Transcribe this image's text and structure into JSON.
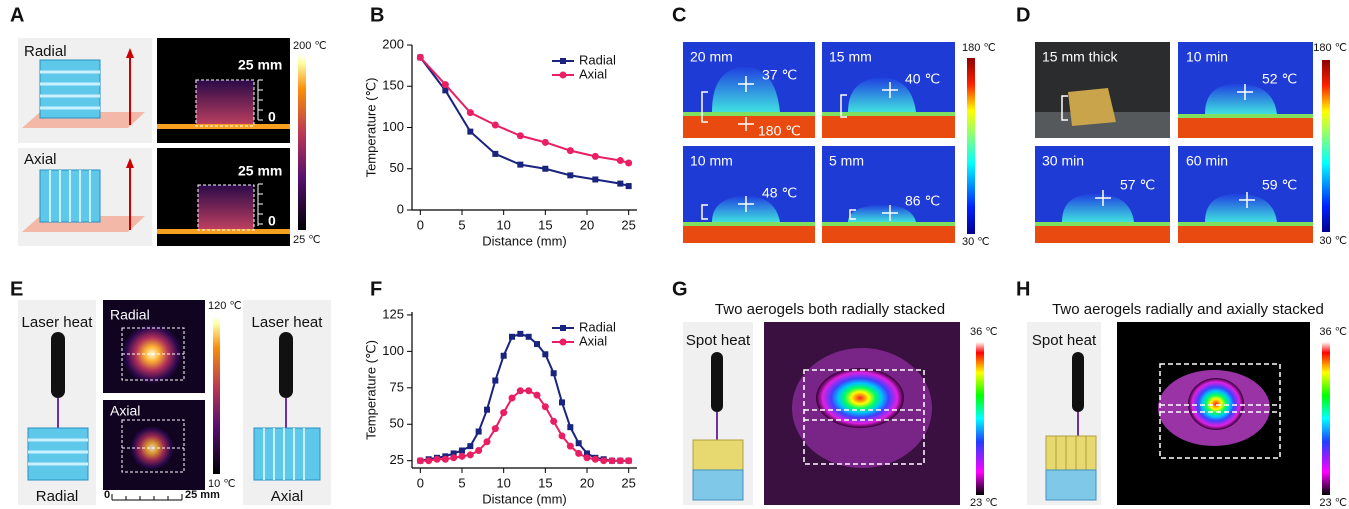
{
  "chart_data": [
    {
      "type": "line",
      "xlabel": "Distance (mm)",
      "ylabel": "Temperature (℃)",
      "x": [
        0,
        3,
        6,
        9,
        12,
        15,
        18,
        21,
        24,
        25
      ],
      "series": [
        {
          "name": "Radial",
          "color": "#1a237e",
          "marker": "square",
          "values": [
            185,
            145,
            95,
            68,
            55,
            50,
            42,
            37,
            32,
            29
          ]
        },
        {
          "name": "Axial",
          "color": "#e91e63",
          "marker": "circle",
          "values": [
            185,
            152,
            118,
            103,
            90,
            82,
            72,
            65,
            60,
            57
          ]
        }
      ],
      "xlim": [
        -1,
        26
      ],
      "ylim": [
        0,
        200
      ],
      "xticks": [
        0,
        5,
        10,
        15,
        20,
        25
      ],
      "yticks": [
        0,
        50,
        100,
        150,
        200
      ],
      "legend": "upper right"
    },
    {
      "type": "line",
      "xlabel": "Distance (mm)",
      "ylabel": "Temperature (℃)",
      "x": [
        0,
        1,
        2,
        3,
        4,
        5,
        6,
        7,
        8,
        9,
        10,
        11,
        12,
        13,
        14,
        15,
        16,
        17,
        18,
        19,
        20,
        21,
        22,
        23,
        24,
        25
      ],
      "series": [
        {
          "name": "Radial",
          "color": "#1a237e",
          "marker": "square",
          "values": [
            25,
            26,
            27,
            28,
            30,
            32,
            35,
            45,
            60,
            80,
            97,
            110,
            112,
            110,
            105,
            98,
            85,
            65,
            48,
            37,
            30,
            27,
            26,
            25,
            25,
            25
          ]
        },
        {
          "name": "Axial",
          "color": "#e91e63",
          "marker": "circle",
          "values": [
            25,
            25,
            26,
            26,
            27,
            28,
            29,
            32,
            38,
            47,
            58,
            68,
            73,
            73,
            70,
            62,
            52,
            42,
            35,
            30,
            27,
            26,
            25,
            25,
            25,
            25
          ]
        }
      ],
      "xlim": [
        -1,
        26
      ],
      "ylim": [
        20,
        127
      ],
      "xticks": [
        0,
        5,
        10,
        15,
        20,
        25
      ],
      "yticks": [
        25,
        50,
        75,
        100,
        125
      ],
      "legend": "upper right"
    }
  ],
  "panel_a": {
    "letter": "A",
    "rows": [
      {
        "label": "Radial",
        "scale_top": "25 mm",
        "scale_zero": "0"
      },
      {
        "label": "Axial",
        "scale_top": "25 mm",
        "scale_zero": "0"
      }
    ],
    "colorbar": [
      "200 ℃",
      "25 ℃"
    ]
  },
  "panel_b": {
    "letter": "B"
  },
  "panel_c": {
    "letter": "C",
    "images": [
      {
        "label": "20 mm",
        "temps": [
          "37 ℃",
          "180 ℃"
        ]
      },
      {
        "label": "15 mm",
        "temps": [
          "40 ℃"
        ]
      },
      {
        "label": "10 mm",
        "temps": [
          "48 ℃"
        ]
      },
      {
        "label": "5 mm",
        "temps": [
          "86 ℃"
        ]
      }
    ],
    "colorbar": [
      "180 ℃",
      "30 ℃"
    ]
  },
  "panel_d": {
    "letter": "D",
    "images": [
      {
        "label": "15 mm thick"
      },
      {
        "label": "10 min",
        "temps": [
          "52 ℃"
        ]
      },
      {
        "label": "30 min",
        "temps": [
          "57 ℃"
        ]
      },
      {
        "label": "60 min",
        "temps": [
          "59 ℃"
        ]
      }
    ],
    "colorbar": [
      "180 ℃",
      "30 ℃"
    ]
  },
  "panel_e": {
    "letter": "E",
    "left": {
      "heat": "Laser heat",
      "label": "Radial"
    },
    "images": [
      {
        "label": "Radial"
      },
      {
        "label": "Axial"
      }
    ],
    "colorbar": [
      "120 ℃",
      "10 ℃"
    ],
    "scale": [
      "0",
      "25 mm"
    ],
    "right": {
      "heat": "Laser heat",
      "label": "Axial"
    }
  },
  "panel_f": {
    "letter": "F"
  },
  "panel_g": {
    "letter": "G",
    "title": "Two aerogels both radially stacked",
    "heat": "Spot heat",
    "colorbar": [
      "36 ℃",
      "23 ℃"
    ]
  },
  "panel_h": {
    "letter": "H",
    "title": "Two aerogels radially and axially stacked",
    "heat": "Spot heat",
    "colorbar": [
      "36 ℃",
      "23 ℃"
    ]
  }
}
